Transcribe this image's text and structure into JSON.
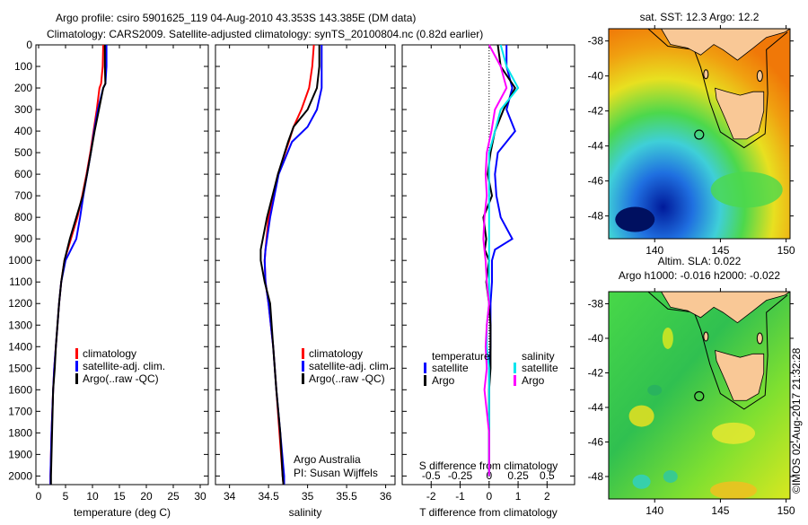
{
  "title_line1": "Argo profile: csiro 5901625_119 04-Aug-2010 43.353S 143.385E (DM data)",
  "title_line2": "Climatology: CARS2009. Satellite-adjusted climatology: synTS_20100804.nc (0.82d earlier)",
  "timestamp": "©IMOS 02-Aug-2017 21:32:28",
  "colors": {
    "climatology": "#ff0000",
    "satellite": "#0000ff",
    "argo": "#000000",
    "sal_satellite": "#00e5ee",
    "sal_argo": "#ff00ff"
  },
  "chart_data": [
    {
      "type": "line",
      "title": "",
      "xlabel": "temperature (deg C)",
      "ylabel": "",
      "xlim": [
        -0.5,
        31.5
      ],
      "ylim": [
        2040,
        0
      ],
      "xticks": [
        "0",
        "5",
        "10",
        "15",
        "20",
        "25",
        "30"
      ],
      "yticks": [
        "0",
        "100",
        "200",
        "300",
        "400",
        "500",
        "600",
        "700",
        "800",
        "900",
        "1000",
        "1100",
        "1200",
        "1300",
        "1400",
        "1500",
        "1600",
        "1700",
        "1800",
        "1900",
        "2000"
      ],
      "legend": [
        "climatology",
        "satellite-adj. clim.",
        "Argo(..raw -QC)"
      ],
      "depth": [
        0,
        100,
        180,
        200,
        300,
        400,
        500,
        600,
        700,
        800,
        900,
        1000,
        1100,
        1200,
        1300,
        1400,
        1500,
        1600,
        1800,
        2000,
        2040
      ],
      "series": [
        {
          "name": "climatology",
          "values": [
            12.0,
            11.9,
            11.6,
            11.3,
            10.8,
            10.2,
            9.6,
            8.9,
            8.1,
            7.2,
            6.0,
            4.8,
            4.2,
            3.8,
            3.5,
            3.2,
            2.9,
            2.7,
            2.4,
            2.2,
            2.2
          ]
        },
        {
          "name": "satellite-adj. clim.",
          "values": [
            12.6,
            12.6,
            12.4,
            12.0,
            11.0,
            10.3,
            9.7,
            9.0,
            8.3,
            7.7,
            7.0,
            5.0,
            4.2,
            3.8,
            3.5,
            3.2,
            2.9,
            2.7,
            2.4,
            2.2,
            2.2
          ]
        },
        {
          "name": "Argo(..raw -QC)",
          "values": [
            12.3,
            12.3,
            12.4,
            12.0,
            11.2,
            10.4,
            9.7,
            9.0,
            8.2,
            7.0,
            5.8,
            4.8,
            4.2,
            3.8,
            3.5,
            3.2,
            3.0,
            2.7,
            2.5,
            2.3,
            2.3
          ]
        }
      ]
    },
    {
      "type": "line",
      "xlabel": "salinity",
      "xlim": [
        33.82,
        36.12
      ],
      "ylim": [
        2040,
        0
      ],
      "xticks": [
        "34",
        "34.5",
        "35",
        "35.5",
        "36"
      ],
      "legend": [
        "climatology",
        "satellite-adj. clim.",
        "Argo(..raw -QC)"
      ],
      "annotation": [
        "Argo Australia",
        "PI: Susan Wijffels"
      ],
      "depth": [
        0,
        100,
        200,
        300,
        380,
        450,
        600,
        800,
        950,
        1000,
        1100,
        1200,
        1400,
        1600,
        1800,
        2000,
        2040
      ],
      "series": [
        {
          "name": "climatology",
          "values": [
            35.08,
            35.06,
            35.02,
            34.92,
            34.82,
            34.76,
            34.62,
            34.5,
            34.46,
            34.45,
            34.46,
            34.5,
            34.56,
            34.6,
            34.64,
            34.68,
            34.69
          ]
        },
        {
          "name": "satellite-adj. clim.",
          "values": [
            35.18,
            35.18,
            35.18,
            35.12,
            35.0,
            34.8,
            34.63,
            34.52,
            34.46,
            34.45,
            34.46,
            34.5,
            34.56,
            34.6,
            34.65,
            34.7,
            34.7
          ]
        },
        {
          "name": "Argo(..raw -QC)",
          "values": [
            35.15,
            35.15,
            35.12,
            35.0,
            34.82,
            34.75,
            34.62,
            34.48,
            34.4,
            34.4,
            34.45,
            34.52,
            34.56,
            34.6,
            34.65,
            34.68,
            34.69
          ]
        }
      ]
    },
    {
      "type": "line",
      "xlabel": "T difference from climatology",
      "xlabel2": "S difference from climatology",
      "xlim": [
        -3.0,
        2.95
      ],
      "ylim": [
        2040,
        0
      ],
      "xticks": [
        "-2",
        "-1",
        "0",
        "1",
        "2"
      ],
      "xticks2": [
        "-0.5",
        "-0.25",
        "0",
        "0.25",
        "0.5"
      ],
      "legend_title_t": "temperature",
      "legend_title_s": "salinity",
      "legend": [
        "satellite",
        "Argo",
        "satellite",
        "Argo"
      ],
      "depth": [
        0,
        100,
        200,
        300,
        400,
        500,
        600,
        700,
        800,
        900,
        950,
        1000,
        1100,
        1200,
        1300,
        1400,
        1500,
        1600,
        1800,
        2000
      ],
      "series": [
        {
          "name": "T satellite",
          "values": [
            0.6,
            0.6,
            0.8,
            0.6,
            0.9,
            0.3,
            0.2,
            0.25,
            0.4,
            0.8,
            0.2,
            0.1,
            0.1,
            0.05,
            0.05,
            0.05,
            0.0,
            0.0,
            0.0,
            0.0
          ]
        },
        {
          "name": "T Argo",
          "values": [
            0.3,
            0.4,
            0.9,
            0.5,
            0.2,
            0.05,
            -0.05,
            0.1,
            -0.2,
            -0.1,
            -0.15,
            0.0,
            -0.1,
            0.0,
            0.05,
            0.05,
            0.05,
            0.0,
            0.0,
            0.0
          ]
        },
        {
          "name": "S satellite",
          "values": [
            0.1,
            0.15,
            0.25,
            0.1,
            0.05,
            0.0,
            0.0,
            0.0,
            0.0,
            0.0,
            0.0,
            0.0,
            0.0,
            0.0,
            -0.02,
            -0.02,
            0.0,
            0.0,
            0.0,
            0.0
          ]
        },
        {
          "name": "S Argo",
          "values": [
            0.0,
            0.1,
            0.15,
            0.05,
            0.02,
            -0.02,
            -0.03,
            -0.02,
            -0.04,
            -0.05,
            -0.04,
            -0.03,
            -0.02,
            0.0,
            -0.02,
            -0.03,
            -0.02,
            -0.04,
            0.0,
            0.0
          ]
        }
      ]
    },
    {
      "type": "heatmap",
      "title": "sat. SST: 12.3 Argo: 12.2",
      "xticks": [
        "140",
        "145",
        "150"
      ],
      "yticks": [
        "-38",
        "-40",
        "-42",
        "-44",
        "-46",
        "-48"
      ],
      "xlim": [
        136.5,
        150.3
      ],
      "ylim": [
        -49.3,
        -37.3
      ],
      "marker": {
        "lon": 143.385,
        "lat": -43.353
      }
    },
    {
      "type": "heatmap",
      "title": "Altim. SLA: 0.022",
      "subtitle": "Argo h1000: -0.016 h2000: -0.022",
      "xticks": [
        "140",
        "145",
        "150"
      ],
      "yticks": [
        "-38",
        "-40",
        "-42",
        "-44",
        "-46",
        "-48"
      ],
      "xlim": [
        136.5,
        150.3
      ],
      "ylim": [
        -49.3,
        -37.3
      ],
      "marker": {
        "lon": 143.385,
        "lat": -43.353
      }
    }
  ]
}
